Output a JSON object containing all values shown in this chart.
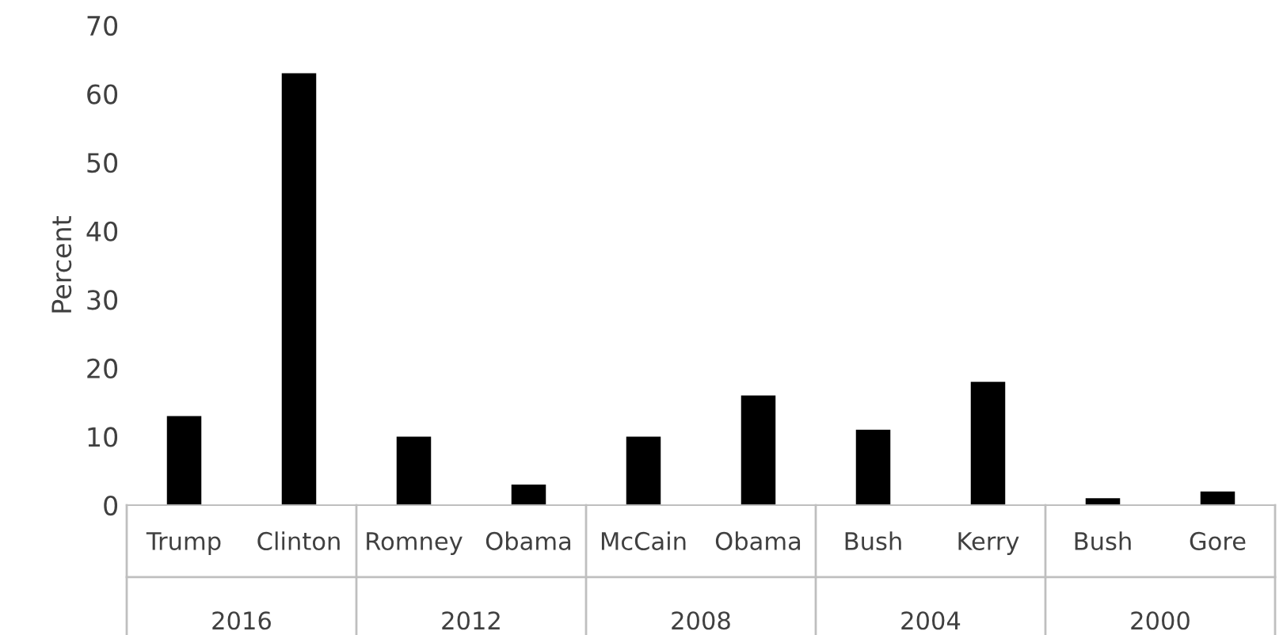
{
  "chart_data": {
    "type": "bar",
    "ylabel": "Percent",
    "categories": [
      "Trump",
      "Clinton",
      "Romney",
      "Obama",
      "McCain",
      "Obama",
      "Bush",
      "Kerry",
      "Bush",
      "Gore"
    ],
    "values": [
      13,
      63,
      10,
      3,
      10,
      16,
      11,
      18,
      1,
      2
    ],
    "color": "#000000",
    "annotations": [
      "2016",
      "2012",
      "2008",
      "2004",
      "2000"
    ],
    "ylim": [
      0,
      70
    ],
    "yticks": [
      0,
      10,
      20,
      30,
      40,
      50,
      60,
      70
    ],
    "grid": false
  }
}
